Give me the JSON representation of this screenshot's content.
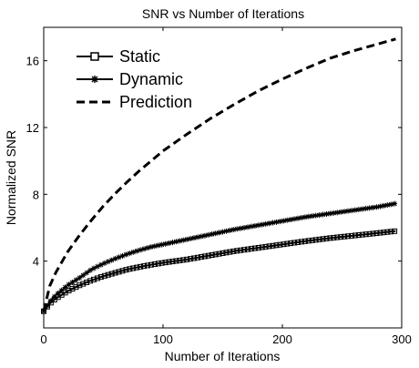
{
  "chart_data": {
    "type": "line",
    "title": "SNR vs Number of Iterations",
    "xlabel": "Number of Iterations",
    "ylabel": "Normalized SNR",
    "xlim": [
      0,
      300
    ],
    "ylim": [
      0,
      18
    ],
    "xticks": [
      0,
      100,
      200,
      300
    ],
    "yticks": [
      4,
      8,
      12,
      16
    ],
    "xtick_labels": [
      "0",
      "100",
      "200",
      "300"
    ],
    "ytick_labels": [
      "4",
      "8",
      "12",
      "16"
    ],
    "grid": false,
    "legend_position": "top-left",
    "series": [
      {
        "name": "Static",
        "style": "solid-square-markers",
        "color": "#000000",
        "x": [
          0,
          5,
          10,
          20,
          30,
          40,
          50,
          60,
          70,
          80,
          90,
          100,
          120,
          140,
          160,
          180,
          200,
          220,
          240,
          260,
          280,
          295
        ],
        "y": [
          1.0,
          1.45,
          1.75,
          2.2,
          2.55,
          2.85,
          3.1,
          3.3,
          3.5,
          3.65,
          3.78,
          3.9,
          4.1,
          4.35,
          4.6,
          4.8,
          5.0,
          5.2,
          5.38,
          5.53,
          5.68,
          5.8
        ]
      },
      {
        "name": "Dynamic",
        "style": "solid-star-markers",
        "color": "#000000",
        "x": [
          0,
          5,
          10,
          20,
          30,
          40,
          50,
          60,
          70,
          80,
          90,
          100,
          120,
          140,
          160,
          180,
          200,
          220,
          240,
          260,
          280,
          295
        ],
        "y": [
          1.0,
          1.55,
          1.95,
          2.55,
          3.0,
          3.5,
          3.85,
          4.15,
          4.42,
          4.65,
          4.85,
          5.0,
          5.3,
          5.6,
          5.9,
          6.15,
          6.4,
          6.65,
          6.85,
          7.05,
          7.25,
          7.45
        ]
      },
      {
        "name": "Prediction",
        "style": "dashed",
        "color": "#000000",
        "x": [
          0,
          5,
          10,
          20,
          30,
          40,
          50,
          60,
          70,
          80,
          90,
          100,
          120,
          140,
          160,
          180,
          200,
          220,
          240,
          260,
          280,
          295
        ],
        "y": [
          1.0,
          2.5,
          3.3,
          4.55,
          5.55,
          6.45,
          7.3,
          8.05,
          8.75,
          9.4,
          10.0,
          10.6,
          11.6,
          12.55,
          13.4,
          14.2,
          14.9,
          15.55,
          16.15,
          16.6,
          17.0,
          17.3
        ]
      }
    ]
  }
}
